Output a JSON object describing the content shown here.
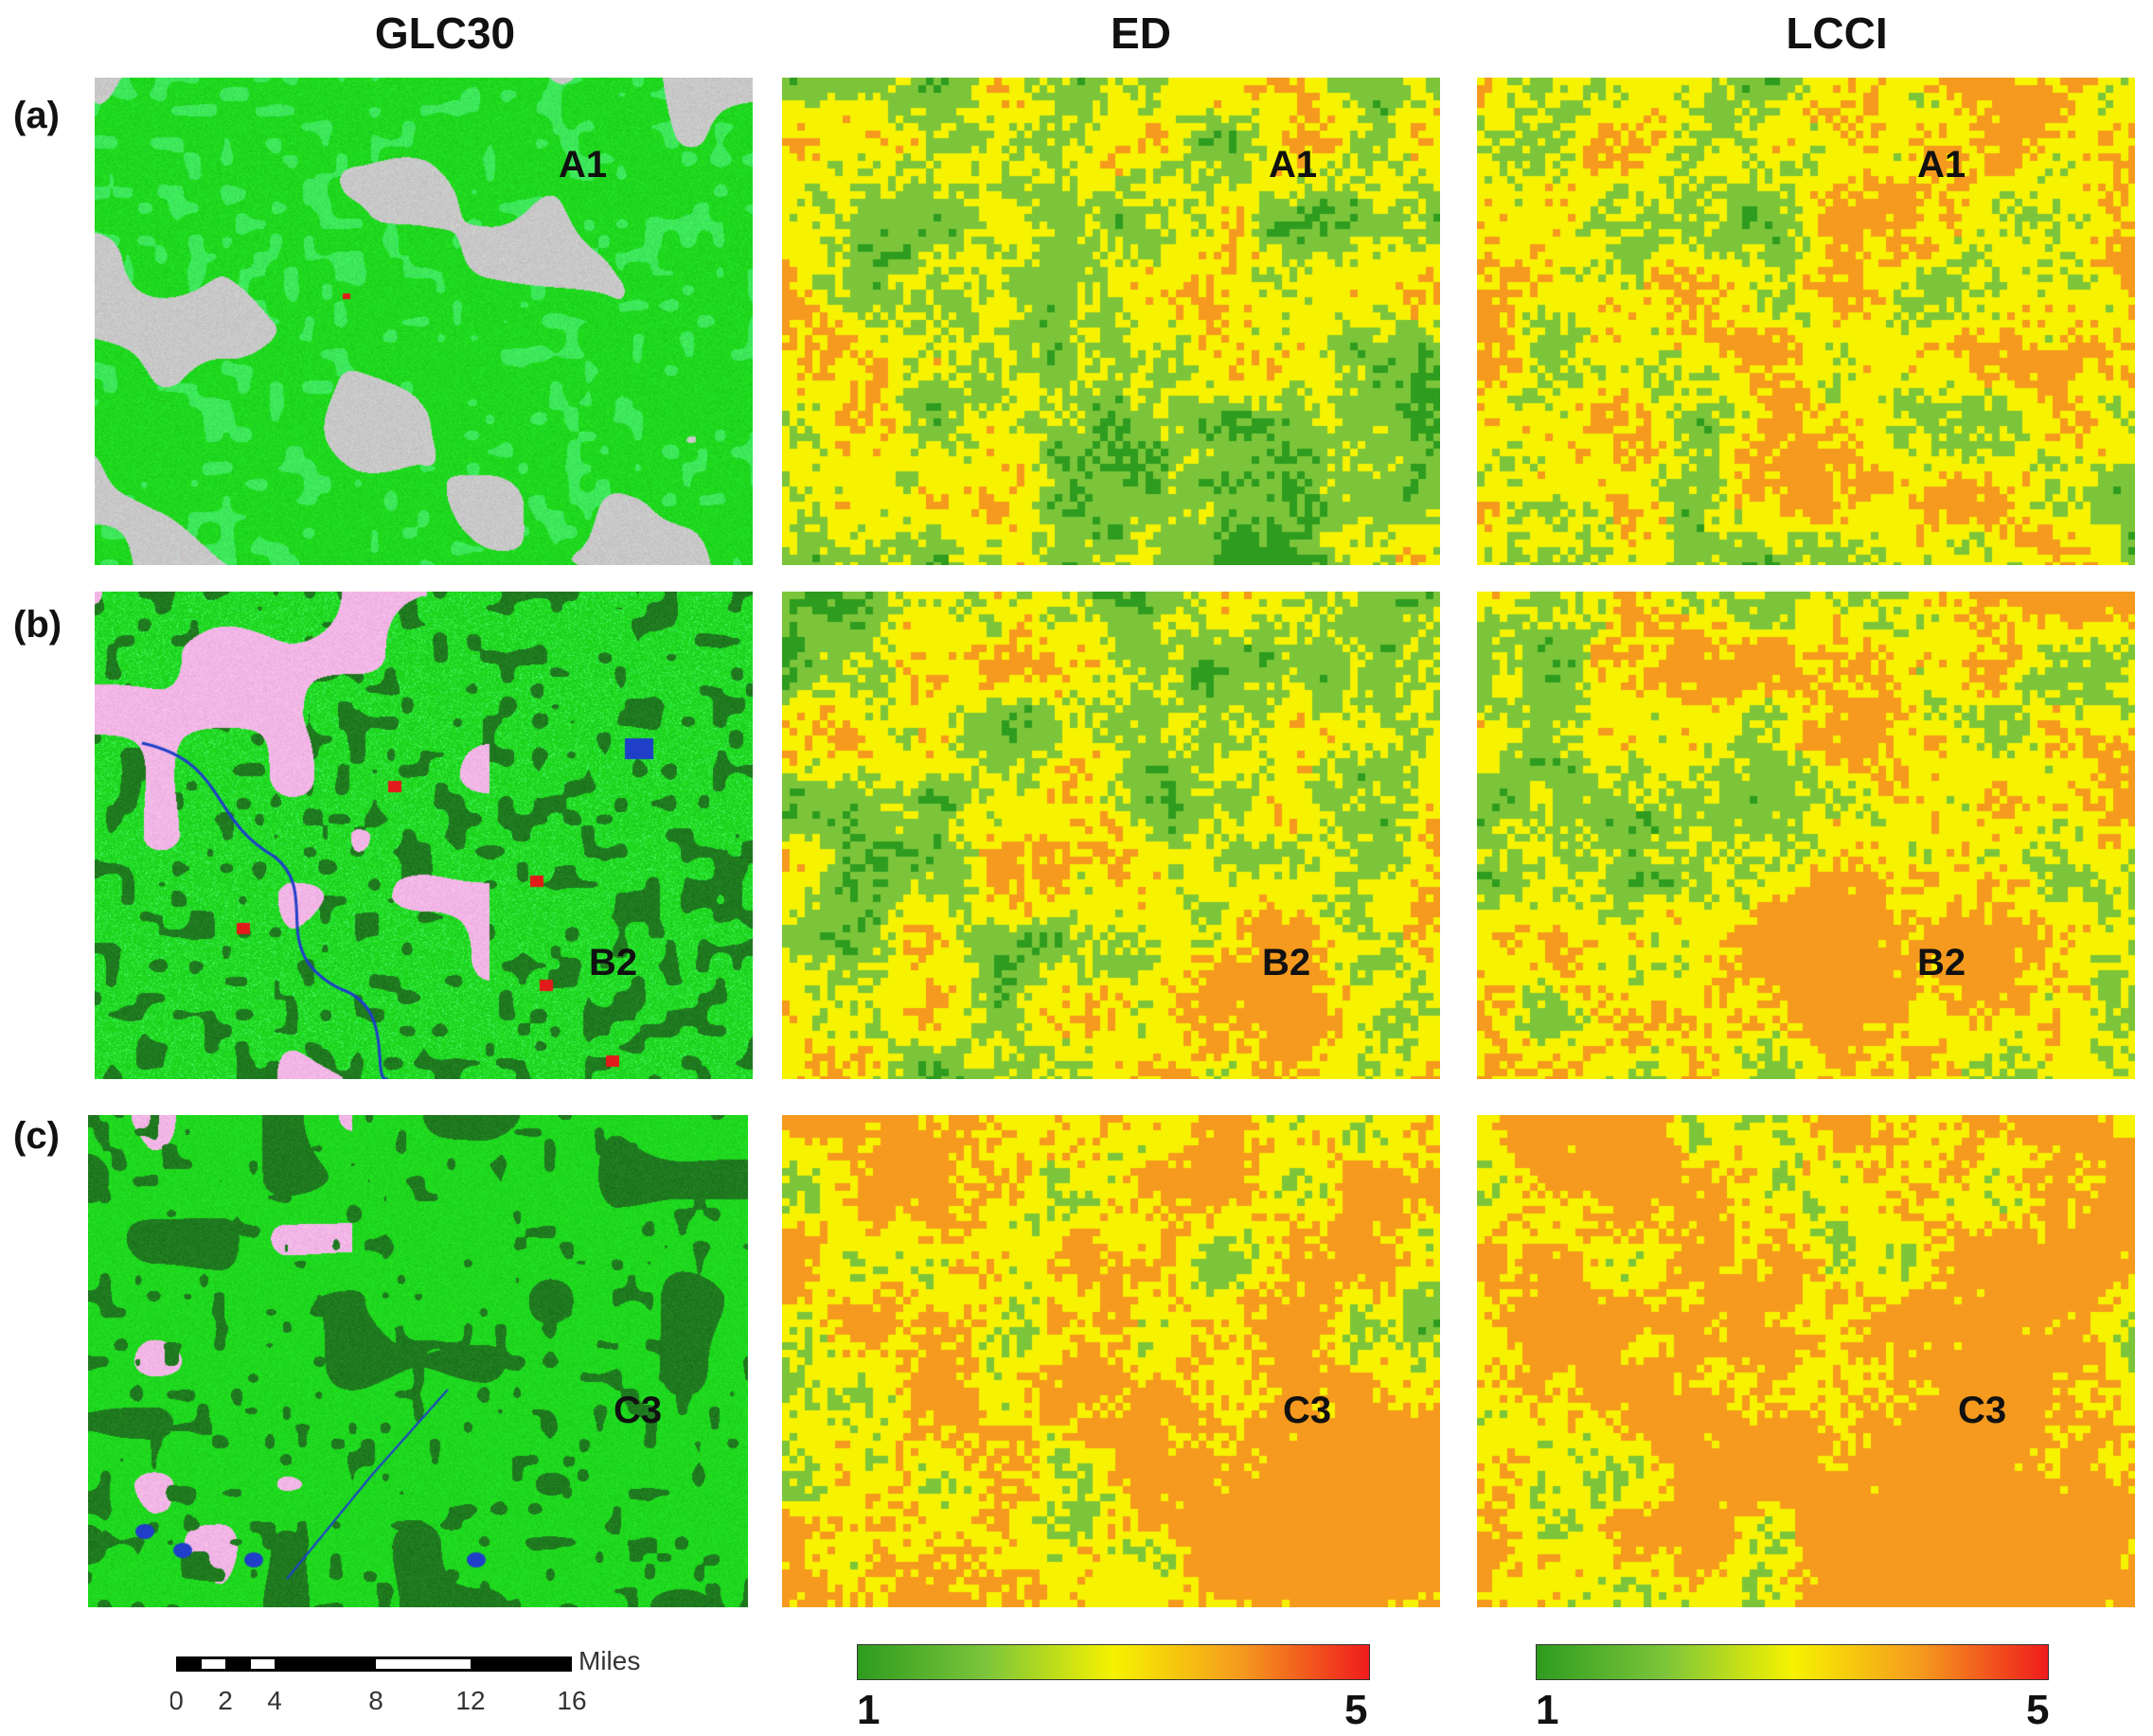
{
  "columns": [
    "GLC30",
    "ED",
    "LCCI"
  ],
  "rows": [
    {
      "label": "(a)",
      "region": "A1"
    },
    {
      "label": "(b)",
      "region": "B2"
    },
    {
      "label": "(c)",
      "region": "C3"
    }
  ],
  "scalebar": {
    "unit": "Miles",
    "ticks": [
      "0",
      "2",
      "4",
      "8",
      "12",
      "16"
    ]
  },
  "colorbars": [
    {
      "name": "ED",
      "min": "1",
      "max": "5"
    },
    {
      "name": "LCCI",
      "min": "1",
      "max": "5"
    }
  ],
  "palette": {
    "index_ramp": [
      "#2e9c1e",
      "#7cc53a",
      "#f6f200",
      "#f59a1e",
      "#ef1c1c"
    ],
    "glc": {
      "forest_dark": "#1f7a1f",
      "forest": "#1fd81f",
      "grass": "#3de85a",
      "cropland": "#c8c8c8",
      "cropland_pink": "#f2b6e6",
      "water": "#1f3fc8",
      "built": "#e21a1a"
    }
  }
}
